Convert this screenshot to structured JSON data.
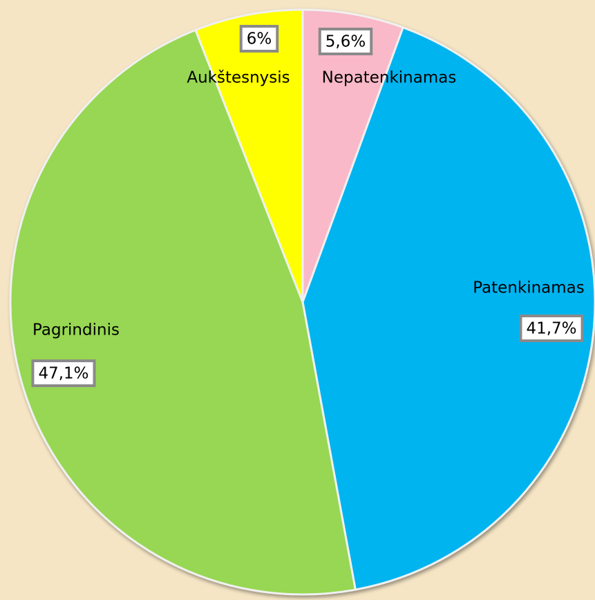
{
  "chart_data": {
    "type": "pie",
    "categories": [
      "Nepatenkinamas",
      "Patenkinamas",
      "Pagrindinis",
      "Aukštesnysis"
    ],
    "values": [
      5.6,
      41.7,
      47.1,
      6
    ],
    "value_labels": [
      "5,6%",
      "41,7%",
      "47,1%",
      "6%"
    ],
    "colors": [
      "#f9b9c8",
      "#00b4f0",
      "#97d752",
      "#ffff00"
    ]
  }
}
